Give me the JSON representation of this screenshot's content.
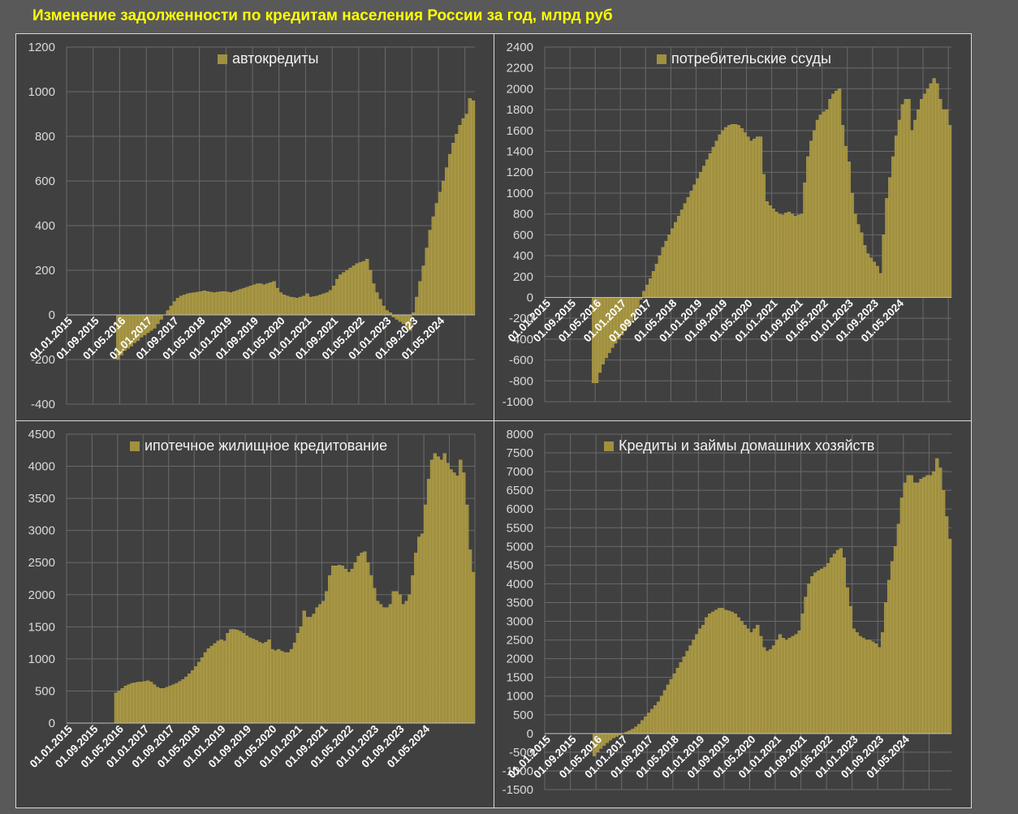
{
  "title": "Изменение задолженности по кредитам населения России за год, млрд руб",
  "colors": {
    "bar": "#a09040",
    "bar_stroke": "#c8b45a",
    "panel_bg": "#404040",
    "grid": "#6a6a6a",
    "text": "#d9d9d9",
    "title": "#FFFF00"
  },
  "x_tick_labels": [
    "01.01.2015",
    "01.09.2015",
    "01.05.2016",
    "01.01.2017",
    "01.09.2017",
    "01.05.2018",
    "01.01.2019",
    "01.09.2019",
    "01.05.2020",
    "01.01.2021",
    "01.09.2021",
    "01.05.2022",
    "01.01.2023",
    "01.09.2023",
    "01.05.2024"
  ],
  "chart_data": [
    {
      "type": "bar",
      "legend": "автокредиты",
      "ylim": [
        -400,
        1200
      ],
      "yticks": [
        -400,
        -200,
        0,
        200,
        400,
        600,
        800,
        1000,
        1200
      ],
      "x_start": "01.01.2015",
      "x_step": "month",
      "values": [
        0,
        0,
        0,
        0,
        0,
        0,
        0,
        0,
        0,
        0,
        0,
        0,
        0,
        0,
        0,
        -200,
        -180,
        -160,
        -150,
        -140,
        -125,
        -115,
        -100,
        -90,
        -80,
        -70,
        -60,
        -40,
        -20,
        0,
        20,
        40,
        60,
        75,
        85,
        90,
        95,
        98,
        100,
        102,
        105,
        108,
        105,
        102,
        100,
        102,
        104,
        105,
        103,
        100,
        105,
        110,
        115,
        120,
        125,
        130,
        135,
        140,
        140,
        135,
        140,
        145,
        150,
        120,
        100,
        90,
        85,
        80,
        78,
        75,
        80,
        85,
        95,
        80,
        82,
        85,
        90,
        95,
        100,
        110,
        130,
        160,
        180,
        190,
        200,
        210,
        220,
        230,
        235,
        240,
        250,
        200,
        140,
        100,
        70,
        40,
        20,
        10,
        -10,
        -20,
        -30,
        -40,
        -60,
        -70,
        10,
        80,
        150,
        220,
        300,
        380,
        440,
        500,
        550,
        600,
        660,
        720,
        770,
        810,
        850,
        880,
        900,
        970,
        960
      ]
    },
    {
      "type": "bar",
      "legend": "потребительские ссуды",
      "ylim": [
        -1000,
        2400
      ],
      "yticks": [
        -1000,
        -800,
        -600,
        -400,
        -200,
        0,
        200,
        400,
        600,
        800,
        1000,
        1200,
        1400,
        1600,
        1800,
        2000,
        2200,
        2400
      ],
      "x_start": "01.01.2015",
      "x_step": "month",
      "values": [
        0,
        0,
        0,
        0,
        0,
        0,
        0,
        0,
        0,
        0,
        0,
        0,
        0,
        0,
        0,
        -820,
        -820,
        -720,
        -640,
        -580,
        -530,
        -480,
        -440,
        -400,
        -360,
        -320,
        -280,
        -240,
        -180,
        -100,
        -20,
        60,
        120,
        180,
        250,
        320,
        400,
        480,
        540,
        600,
        660,
        720,
        780,
        840,
        900,
        960,
        1020,
        1080,
        1140,
        1200,
        1260,
        1320,
        1380,
        1440,
        1500,
        1560,
        1600,
        1630,
        1650,
        1660,
        1660,
        1650,
        1620,
        1580,
        1540,
        1500,
        1520,
        1540,
        1540,
        1180,
        920,
        880,
        850,
        820,
        800,
        790,
        810,
        820,
        800,
        780,
        790,
        800,
        1100,
        1350,
        1500,
        1600,
        1700,
        1750,
        1780,
        1800,
        1900,
        1950,
        1980,
        2000,
        1650,
        1450,
        1300,
        1000,
        800,
        700,
        620,
        500,
        420,
        380,
        340,
        300,
        230,
        600,
        950,
        1150,
        1350,
        1550,
        1700,
        1850,
        1900,
        1900,
        1600,
        1700,
        1800,
        1900,
        1950,
        2000,
        2050,
        2100,
        2050,
        1900,
        1800,
        1800,
        1650
      ]
    },
    {
      "type": "bar",
      "legend": "ипотечное жилищное кредитование",
      "ylim": [
        0,
        4500
      ],
      "yticks": [
        0,
        500,
        1000,
        1500,
        2000,
        2500,
        3000,
        3500,
        4000,
        4500
      ],
      "x_start": "01.01.2015",
      "x_step": "month",
      "values": [
        0,
        0,
        0,
        0,
        0,
        0,
        0,
        0,
        0,
        0,
        0,
        0,
        0,
        0,
        0,
        470,
        500,
        540,
        580,
        600,
        620,
        630,
        640,
        640,
        650,
        660,
        640,
        600,
        560,
        540,
        540,
        560,
        580,
        600,
        620,
        650,
        680,
        720,
        770,
        820,
        880,
        950,
        1020,
        1100,
        1160,
        1200,
        1240,
        1280,
        1300,
        1280,
        1400,
        1460,
        1460,
        1450,
        1430,
        1400,
        1360,
        1330,
        1310,
        1290,
        1260,
        1240,
        1260,
        1300,
        1150,
        1130,
        1150,
        1120,
        1100,
        1100,
        1150,
        1250,
        1400,
        1500,
        1750,
        1650,
        1650,
        1700,
        1800,
        1850,
        1900,
        2050,
        2300,
        2450,
        2450,
        2460,
        2450,
        2400,
        2350,
        2400,
        2500,
        2600,
        2650,
        2670,
        2500,
        2300,
        2100,
        1900,
        1850,
        1800,
        1800,
        1850,
        2050,
        2050,
        2000,
        1850,
        1900,
        2000,
        2300,
        2650,
        2900,
        2950,
        3400,
        3800,
        4100,
        4200,
        4150,
        4100,
        4200,
        4050,
        3950,
        3900,
        3850,
        4100,
        3900,
        3400,
        2700,
        2350
      ]
    },
    {
      "type": "bar",
      "legend": "Кредиты и займы домашних хозяйств",
      "ylim": [
        -1500,
        8000
      ],
      "yticks": [
        -1500,
        -1000,
        -500,
        0,
        500,
        1000,
        1500,
        2000,
        2500,
        3000,
        3500,
        4000,
        4500,
        5000,
        5500,
        6000,
        6500,
        7000,
        7500,
        8000
      ],
      "x_start": "01.01.2015",
      "x_step": "month",
      "values": [
        0,
        0,
        0,
        0,
        0,
        0,
        0,
        0,
        0,
        0,
        0,
        0,
        0,
        0,
        0,
        -600,
        -500,
        -400,
        -320,
        -250,
        -180,
        -120,
        -80,
        -40,
        0,
        40,
        80,
        120,
        180,
        250,
        350,
        450,
        550,
        650,
        750,
        850,
        1000,
        1150,
        1300,
        1450,
        1600,
        1750,
        1900,
        2050,
        2200,
        2350,
        2500,
        2650,
        2800,
        2900,
        3100,
        3200,
        3250,
        3300,
        3350,
        3350,
        3300,
        3280,
        3250,
        3200,
        3100,
        3000,
        2900,
        2800,
        2700,
        2800,
        2900,
        2600,
        2300,
        2200,
        2250,
        2350,
        2500,
        2650,
        2550,
        2500,
        2550,
        2600,
        2650,
        2750,
        3200,
        3650,
        4000,
        4200,
        4300,
        4350,
        4400,
        4450,
        4550,
        4700,
        4800,
        4900,
        4950,
        4700,
        3900,
        3400,
        2800,
        2700,
        2600,
        2550,
        2500,
        2500,
        2450,
        2400,
        2300,
        2700,
        3500,
        4100,
        4600,
        5000,
        5600,
        6300,
        6700,
        6900,
        6900,
        6700,
        6700,
        6800,
        6850,
        6900,
        6900,
        7000,
        7350,
        7100,
        6500,
        5800,
        5200
      ]
    }
  ]
}
